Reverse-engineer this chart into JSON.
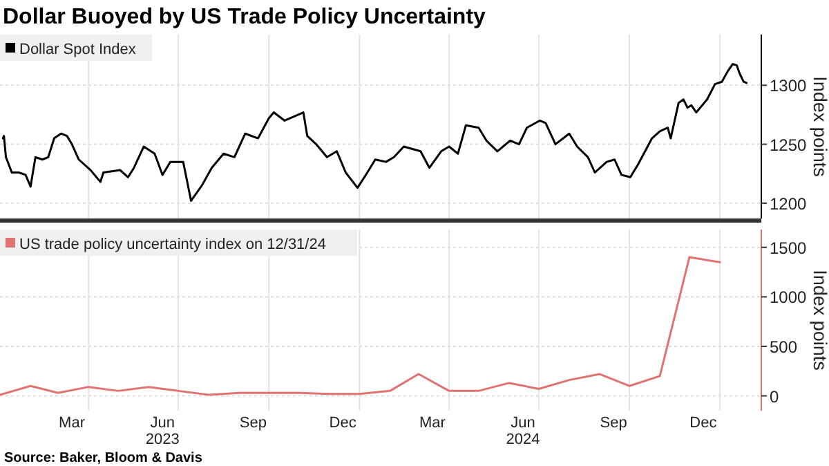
{
  "chart_data": [
    {
      "type": "line",
      "title": "Dollar Buoyed by US Trade Policy Uncertainty",
      "ylabel": "Index points",
      "legend": "top left",
      "grid": true,
      "tick_labels": "y",
      "xlim": [
        "2023-01-01",
        "2025-02-12"
      ],
      "ylim": [
        1187,
        1343
      ],
      "yticks": [
        1200,
        1250,
        1300
      ],
      "xticks": [
        {
          "value": "2023-04-01",
          "label": null
        },
        {
          "value": "2023-07-01",
          "label": null
        },
        {
          "value": "2023-10-01",
          "label": null
        },
        {
          "value": "2024-01-01",
          "label": null
        },
        {
          "value": "2024-04-01",
          "label": null
        },
        {
          "value": "2024-07-01",
          "label": null
        },
        {
          "value": "2024-10-01",
          "label": null
        },
        {
          "value": "2025-01-01",
          "label": null
        }
      ],
      "series": [
        {
          "name": "Dollar Spot Index",
          "color": "#000000",
          "x": [
            "2023-01-04",
            "2023-01-05",
            "2023-01-07",
            "2023-01-13",
            "2023-01-20",
            "2023-01-27",
            "2023-02-01",
            "2023-02-06",
            "2023-02-13",
            "2023-02-19",
            "2023-02-25",
            "2023-03-04",
            "2023-03-10",
            "2023-03-15",
            "2023-03-22",
            "2023-04-03",
            "2023-04-13",
            "2023-04-16",
            "2023-05-03",
            "2023-05-11",
            "2023-05-17",
            "2023-05-27",
            "2023-06-07",
            "2023-06-15",
            "2023-06-23",
            "2023-07-06",
            "2023-07-14",
            "2023-07-25",
            "2023-08-04",
            "2023-08-16",
            "2023-08-27",
            "2023-09-07",
            "2023-09-20",
            "2023-10-01",
            "2023-10-06",
            "2023-10-17",
            "2023-10-28",
            "2023-11-05",
            "2023-11-09",
            "2023-11-18",
            "2023-11-29",
            "2023-12-09",
            "2023-12-18",
            "2023-12-30",
            "2024-01-09",
            "2024-01-17",
            "2024-01-28",
            "2024-02-05",
            "2024-02-15",
            "2024-03-03",
            "2024-03-12",
            "2024-03-24",
            "2024-04-01",
            "2024-04-10",
            "2024-04-18",
            "2024-05-01",
            "2024-05-09",
            "2024-05-20",
            "2024-06-02",
            "2024-06-11",
            "2024-06-19",
            "2024-07-02",
            "2024-07-08",
            "2024-07-18",
            "2024-08-01",
            "2024-08-09",
            "2024-08-20",
            "2024-08-27",
            "2024-09-08",
            "2024-09-16",
            "2024-09-23",
            "2024-10-02",
            "2024-10-10",
            "2024-10-24",
            "2024-11-01",
            "2024-11-09",
            "2024-11-12",
            "2024-11-20",
            "2024-11-25",
            "2024-11-29",
            "2024-12-03",
            "2024-12-08",
            "2024-12-19",
            "2024-12-27",
            "2025-01-03",
            "2025-01-09",
            "2025-01-14",
            "2025-01-18",
            "2025-01-21",
            "2025-01-25",
            "2025-01-28"
          ],
          "values": [
            1255,
            1257,
            1239,
            1226,
            1226,
            1224,
            1214,
            1239,
            1237,
            1239,
            1255,
            1259,
            1257,
            1250,
            1237,
            1228,
            1218,
            1226,
            1228,
            1222,
            1230,
            1248,
            1242,
            1224,
            1235,
            1235,
            1202,
            1215,
            1230,
            1242,
            1239,
            1259,
            1255,
            1272,
            1277,
            1270,
            1274,
            1277,
            1257,
            1250,
            1239,
            1244,
            1226,
            1213,
            1226,
            1237,
            1235,
            1239,
            1248,
            1244,
            1230,
            1244,
            1248,
            1242,
            1266,
            1264,
            1253,
            1244,
            1253,
            1250,
            1264,
            1270,
            1268,
            1250,
            1259,
            1248,
            1239,
            1226,
            1235,
            1237,
            1224,
            1222,
            1233,
            1255,
            1261,
            1264,
            1255,
            1285,
            1288,
            1281,
            1283,
            1277,
            1288,
            1301,
            1303,
            1312,
            1318,
            1317,
            1310,
            1303,
            1302
          ]
        }
      ]
    },
    {
      "type": "line",
      "ylabel": "Index points",
      "legend": "top left",
      "grid": true,
      "xlim": [
        "2023-01-01",
        "2025-02-12"
      ],
      "ylim": [
        -150,
        1680
      ],
      "yticks": [
        0,
        500,
        1000,
        1500
      ],
      "xticks": [
        {
          "value": "2023-03-15",
          "label": "Mar"
        },
        {
          "value": "2023-04-01",
          "label": null
        },
        {
          "value": "2023-06-15",
          "label": "Jun\n2023"
        },
        {
          "value": "2023-07-01",
          "label": null
        },
        {
          "value": "2023-09-15",
          "label": "Sep"
        },
        {
          "value": "2023-10-01",
          "label": null
        },
        {
          "value": "2023-12-15",
          "label": "Dec"
        },
        {
          "value": "2024-01-01",
          "label": null
        },
        {
          "value": "2024-03-15",
          "label": "Mar"
        },
        {
          "value": "2024-04-01",
          "label": null
        },
        {
          "value": "2024-06-15",
          "label": "Jun\n2024"
        },
        {
          "value": "2024-07-01",
          "label": null
        },
        {
          "value": "2024-09-15",
          "label": "Sep"
        },
        {
          "value": "2024-10-01",
          "label": null
        },
        {
          "value": "2024-12-15",
          "label": "Dec"
        },
        {
          "value": "2025-01-01",
          "label": null
        }
      ],
      "annotations": [
        "Source: Baker, Bloom & Davis"
      ],
      "series": [
        {
          "name": "US trade policy uncertainty index on 12/31/24",
          "color": "#e07272",
          "x": [
            "2023-01-01",
            "2023-02-01",
            "2023-03-01",
            "2023-04-01",
            "2023-05-01",
            "2023-06-01",
            "2023-07-01",
            "2023-08-01",
            "2023-09-01",
            "2023-10-01",
            "2023-11-01",
            "2023-12-01",
            "2024-01-01",
            "2024-02-01",
            "2024-03-01",
            "2024-04-01",
            "2024-05-01",
            "2024-06-01",
            "2024-07-01",
            "2024-08-01",
            "2024-09-01",
            "2024-10-01",
            "2024-11-01",
            "2024-12-01",
            "2025-01-01"
          ],
          "values": [
            10,
            100,
            30,
            90,
            50,
            90,
            50,
            10,
            30,
            30,
            30,
            20,
            20,
            50,
            220,
            50,
            50,
            130,
            70,
            160,
            220,
            100,
            200,
            1400,
            1350
          ]
        }
      ]
    }
  ]
}
